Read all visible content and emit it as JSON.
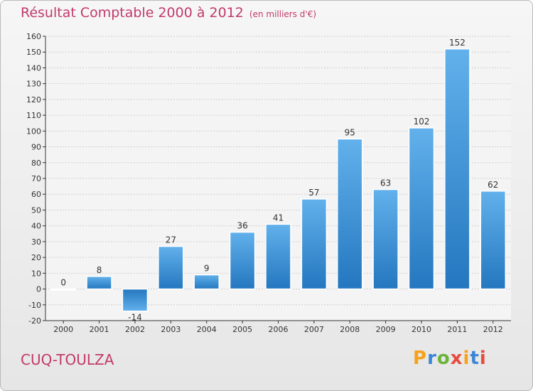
{
  "chart_data": {
    "type": "bar",
    "title": "Résultat Comptable 2000 à 2012",
    "subtitle": "(en milliers d'€)",
    "categories": [
      "2000",
      "2001",
      "2002",
      "2003",
      "2004",
      "2005",
      "2006",
      "2007",
      "2008",
      "2009",
      "2010",
      "2011",
      "2012"
    ],
    "values": [
      0,
      8,
      -14,
      27,
      9,
      36,
      41,
      57,
      95,
      63,
      102,
      152,
      62
    ],
    "data_labels": [
      "0",
      "8",
      "-14",
      "27",
      "9",
      "36",
      "41",
      "57",
      "95",
      "63",
      "102",
      "152",
      "62"
    ],
    "ylim": [
      -20,
      160
    ],
    "yticks": [
      -20,
      -10,
      0,
      10,
      20,
      30,
      40,
      50,
      60,
      70,
      80,
      90,
      100,
      110,
      120,
      130,
      140,
      150,
      160
    ],
    "grid": true,
    "bar_color": "#3f97dc",
    "xlabel": "",
    "ylabel": ""
  },
  "commune": "CUQ-TOULZA",
  "logo": {
    "letters": [
      "P",
      "r",
      "o",
      "x",
      "i",
      "t",
      "i"
    ],
    "colors": [
      "#f5a21b",
      "#3b86d4",
      "#6bb43a",
      "#e84b3c",
      "#f5a21b",
      "#3b86d4",
      "#e84b3c"
    ]
  },
  "colors": {
    "title": "#c23a6b",
    "axis": "#333333",
    "grid": "#cfcfcf"
  }
}
